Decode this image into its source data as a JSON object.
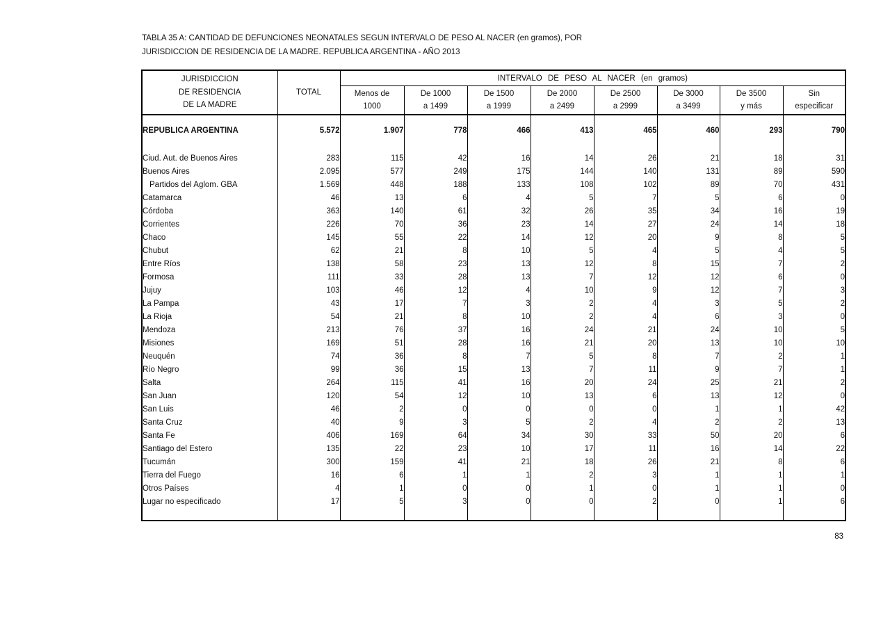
{
  "page": {
    "number": "83"
  },
  "title": {
    "line1": "TABLA  35 A: CANTIDAD DE DEFUNCIONES NEONATALES SEGUN INTERVALO DE PESO AL NACER (en gramos), POR",
    "line2": "JURISDICCION DE  RESIDENCIA DE LA MADRE. REPUBLICA ARGENTINA - AÑO 2013"
  },
  "table": {
    "header": {
      "jurisdiction_lines": [
        "JURISDICCION",
        "DE RESIDENCIA",
        "DE LA MADRE"
      ],
      "total": "TOTAL",
      "interval_group": "INTERVALO  DE  PESO  AL  NACER  (en gramos)",
      "columns": [
        {
          "line1": "Menos de",
          "line2": "1000"
        },
        {
          "line1": "De 1000",
          "line2": "a 1499"
        },
        {
          "line1": "De 1500",
          "line2": "a 1999"
        },
        {
          "line1": "De 2000",
          "line2": "a 2499"
        },
        {
          "line1": "De 2500",
          "line2": "a 2999"
        },
        {
          "line1": "De 3000",
          "line2": "a 3499"
        },
        {
          "line1": "De 3500",
          "line2": "y más"
        },
        {
          "line1": "Sin",
          "line2": "especificar"
        }
      ]
    },
    "total_row": {
      "label": "REPUBLICA ARGENTINA",
      "indent": false,
      "values": [
        "5.572",
        "1.907",
        "778",
        "466",
        "413",
        "465",
        "460",
        "293",
        "790"
      ]
    },
    "rows": [
      {
        "label": "Ciud. Aut. de Buenos Aires",
        "indent": false,
        "values": [
          "283",
          "115",
          "42",
          "16",
          "14",
          "26",
          "21",
          "18",
          "31"
        ]
      },
      {
        "label": "Buenos Aires",
        "indent": false,
        "values": [
          "2.095",
          "577",
          "249",
          "175",
          "144",
          "140",
          "131",
          "89",
          "590"
        ]
      },
      {
        "label": "Partidos del Aglom. GBA",
        "indent": true,
        "values": [
          "1.569",
          "448",
          "188",
          "133",
          "108",
          "102",
          "89",
          "70",
          "431"
        ]
      },
      {
        "label": "Catamarca",
        "indent": false,
        "values": [
          "46",
          "13",
          "6",
          "4",
          "5",
          "7",
          "5",
          "6",
          "0"
        ]
      },
      {
        "label": "Córdoba",
        "indent": false,
        "values": [
          "363",
          "140",
          "61",
          "32",
          "26",
          "35",
          "34",
          "16",
          "19"
        ]
      },
      {
        "label": "Corrientes",
        "indent": false,
        "values": [
          "226",
          "70",
          "36",
          "23",
          "14",
          "27",
          "24",
          "14",
          "18"
        ]
      },
      {
        "label": "Chaco",
        "indent": false,
        "values": [
          "145",
          "55",
          "22",
          "14",
          "12",
          "20",
          "9",
          "8",
          "5"
        ]
      },
      {
        "label": "Chubut",
        "indent": false,
        "values": [
          "62",
          "21",
          "8",
          "10",
          "5",
          "4",
          "5",
          "4",
          "5"
        ]
      },
      {
        "label": "Entre Ríos",
        "indent": false,
        "values": [
          "138",
          "58",
          "23",
          "13",
          "12",
          "8",
          "15",
          "7",
          "2"
        ]
      },
      {
        "label": "Formosa",
        "indent": false,
        "values": [
          "111",
          "33",
          "28",
          "13",
          "7",
          "12",
          "12",
          "6",
          "0"
        ]
      },
      {
        "label": "Jujuy",
        "indent": false,
        "values": [
          "103",
          "46",
          "12",
          "4",
          "10",
          "9",
          "12",
          "7",
          "3"
        ]
      },
      {
        "label": "La Pampa",
        "indent": false,
        "values": [
          "43",
          "17",
          "7",
          "3",
          "2",
          "4",
          "3",
          "5",
          "2"
        ]
      },
      {
        "label": "La Rioja",
        "indent": false,
        "values": [
          "54",
          "21",
          "8",
          "10",
          "2",
          "4",
          "6",
          "3",
          "0"
        ]
      },
      {
        "label": "Mendoza",
        "indent": false,
        "values": [
          "213",
          "76",
          "37",
          "16",
          "24",
          "21",
          "24",
          "10",
          "5"
        ]
      },
      {
        "label": "Misiones",
        "indent": false,
        "values": [
          "169",
          "51",
          "28",
          "16",
          "21",
          "20",
          "13",
          "10",
          "10"
        ]
      },
      {
        "label": "Neuquén",
        "indent": false,
        "values": [
          "74",
          "36",
          "8",
          "7",
          "5",
          "8",
          "7",
          "2",
          "1"
        ]
      },
      {
        "label": "Río Negro",
        "indent": false,
        "values": [
          "99",
          "36",
          "15",
          "13",
          "7",
          "11",
          "9",
          "7",
          "1"
        ]
      },
      {
        "label": "Salta",
        "indent": false,
        "values": [
          "264",
          "115",
          "41",
          "16",
          "20",
          "24",
          "25",
          "21",
          "2"
        ]
      },
      {
        "label": "San Juan",
        "indent": false,
        "values": [
          "120",
          "54",
          "12",
          "10",
          "13",
          "6",
          "13",
          "12",
          "0"
        ]
      },
      {
        "label": "San Luis",
        "indent": false,
        "values": [
          "46",
          "2",
          "0",
          "0",
          "0",
          "0",
          "1",
          "1",
          "42"
        ]
      },
      {
        "label": "Santa Cruz",
        "indent": false,
        "values": [
          "40",
          "9",
          "3",
          "5",
          "2",
          "4",
          "2",
          "2",
          "13"
        ]
      },
      {
        "label": "Santa Fe",
        "indent": false,
        "values": [
          "406",
          "169",
          "64",
          "34",
          "30",
          "33",
          "50",
          "20",
          "6"
        ]
      },
      {
        "label": "Santiago del Estero",
        "indent": false,
        "values": [
          "135",
          "22",
          "23",
          "10",
          "17",
          "11",
          "16",
          "14",
          "22"
        ]
      },
      {
        "label": "Tucumán",
        "indent": false,
        "values": [
          "300",
          "159",
          "41",
          "21",
          "18",
          "26",
          "21",
          "8",
          "6"
        ]
      },
      {
        "label": "Tierra del Fuego",
        "indent": false,
        "values": [
          "16",
          "6",
          "1",
          "1",
          "2",
          "3",
          "1",
          "1",
          "1"
        ]
      },
      {
        "label": "Otros Países",
        "indent": false,
        "values": [
          "4",
          "1",
          "0",
          "0",
          "1",
          "0",
          "1",
          "1",
          "0"
        ]
      },
      {
        "label": "Lugar no especificado",
        "indent": false,
        "values": [
          "17",
          "5",
          "3",
          "0",
          "0",
          "2",
          "0",
          "1",
          "6"
        ]
      }
    ]
  }
}
